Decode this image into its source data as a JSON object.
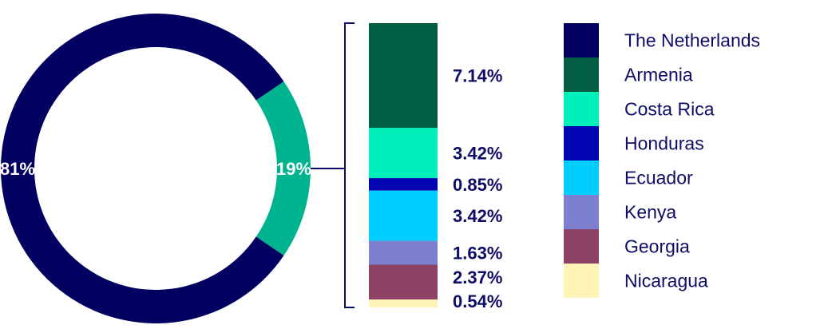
{
  "chart_data": [
    {
      "type": "pie",
      "variant": "donut",
      "slices": [
        {
          "label": "81%",
          "value": 81,
          "color": "#010060"
        },
        {
          "label": "19%",
          "value": 19,
          "color": "#00b38f"
        }
      ]
    },
    {
      "type": "bar",
      "variant": "stacked-single",
      "categories": [
        "Armenia",
        "Costa Rica",
        "Honduras",
        "Ecuador",
        "Kenya",
        "Georgia",
        "Nicaragua"
      ],
      "values": [
        7.14,
        3.42,
        0.85,
        3.42,
        1.63,
        2.37,
        0.54
      ],
      "labels": [
        "7.14%",
        "3.42%",
        "0.85%",
        "3.42%",
        "1.63%",
        "2.37%",
        "0.54%"
      ],
      "colors": [
        "#015e44",
        "#00f0bb",
        "#0206b2",
        "#00ceff",
        "#7d7fd0",
        "#8e4265",
        "#fff4b6"
      ]
    }
  ],
  "legend": [
    {
      "name": "The Netherlands",
      "color": "#010060"
    },
    {
      "name": "Armenia",
      "color": "#015e44"
    },
    {
      "name": "Costa Rica",
      "color": "#00f0bb"
    },
    {
      "name": "Honduras",
      "color": "#0206b2"
    },
    {
      "name": "Ecuador",
      "color": "#00ceff"
    },
    {
      "name": "Kenya",
      "color": "#7d7fd0"
    },
    {
      "name": "Georgia",
      "color": "#8e4265"
    },
    {
      "name": "Nicaragua",
      "color": "#fff4b6"
    }
  ],
  "accent": "#0d0c66"
}
